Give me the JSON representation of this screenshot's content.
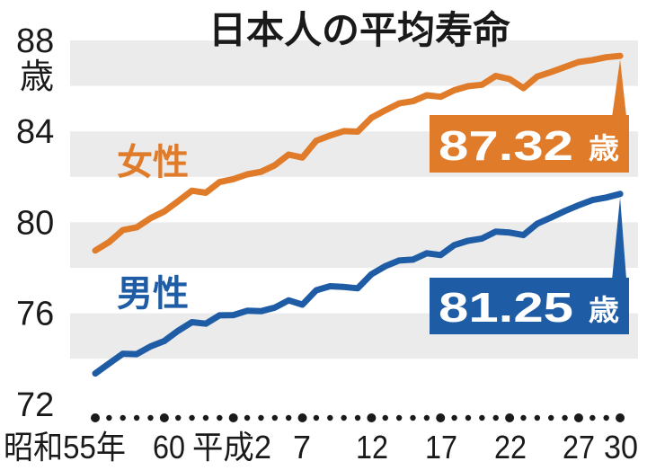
{
  "chart_data": {
    "type": "line",
    "title": "日本人の平均寿命",
    "ylabel": "歳",
    "ylim": [
      72,
      88
    ],
    "yticks": [
      "88",
      "84",
      "80",
      "76",
      "72"
    ],
    "ytick_values": [
      88,
      84,
      80,
      76,
      72
    ],
    "x": [
      1980,
      1981,
      1982,
      1983,
      1984,
      1985,
      1986,
      1987,
      1988,
      1989,
      1990,
      1991,
      1992,
      1993,
      1994,
      1995,
      1996,
      1997,
      1998,
      1999,
      2000,
      2001,
      2002,
      2003,
      2004,
      2005,
      2006,
      2007,
      2008,
      2009,
      2010,
      2011,
      2012,
      2013,
      2014,
      2015,
      2016,
      2017,
      2018
    ],
    "xticks": [
      {
        "label": "昭和55年",
        "year": 1980
      },
      {
        "label": "60",
        "year": 1985
      },
      {
        "label": "平成2",
        "year": 1990
      },
      {
        "label": "7",
        "year": 1995
      },
      {
        "label": "12",
        "year": 2000
      },
      {
        "label": "17",
        "year": 2005
      },
      {
        "label": "22",
        "year": 2010
      },
      {
        "label": "27",
        "year": 2015
      },
      {
        "label": "30",
        "year": 2018
      }
    ],
    "grid": "alternating horizontal bands",
    "series": [
      {
        "name": "女性",
        "color": "#e07b2a",
        "values": [
          78.76,
          79.13,
          79.66,
          79.78,
          80.18,
          80.48,
          80.93,
          81.39,
          81.3,
          81.77,
          81.9,
          82.11,
          82.22,
          82.51,
          82.98,
          82.85,
          83.59,
          83.82,
          84.01,
          83.99,
          84.6,
          84.93,
          85.23,
          85.33,
          85.59,
          85.52,
          85.81,
          85.99,
          86.05,
          86.44,
          86.3,
          85.9,
          86.41,
          86.61,
          86.83,
          87.05,
          87.14,
          87.26,
          87.32
        ],
        "callout": {
          "value": "87.32",
          "unit": "歳"
        }
      },
      {
        "name": "男性",
        "color": "#1f5ca6",
        "values": [
          73.35,
          73.79,
          74.22,
          74.2,
          74.54,
          74.78,
          75.23,
          75.61,
          75.54,
          75.91,
          75.92,
          76.11,
          76.09,
          76.25,
          76.57,
          76.38,
          77.01,
          77.19,
          77.16,
          77.1,
          77.72,
          78.07,
          78.32,
          78.36,
          78.64,
          78.56,
          79.0,
          79.19,
          79.29,
          79.59,
          79.55,
          79.44,
          79.94,
          80.21,
          80.5,
          80.75,
          80.98,
          81.09,
          81.25
        ],
        "callout": {
          "value": "81.25",
          "unit": "歳"
        }
      }
    ]
  }
}
